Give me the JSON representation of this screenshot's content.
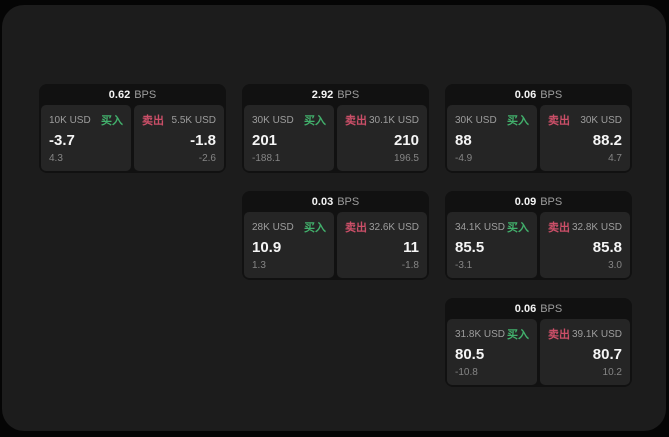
{
  "colors": {
    "background": "#050505",
    "canvas": "#1c1c1c",
    "card": "#111111",
    "panel": "#252525",
    "text_primary": "#f5f5f5",
    "text_label": "#9d9d9d",
    "text_sub": "#858585",
    "buy": "#42b06c",
    "sell": "#cb4f68"
  },
  "labels": {
    "bps_suffix": "BPS",
    "buy_tag": "买入",
    "sell_tag": "卖出"
  },
  "cards": [
    {
      "row": 1,
      "col": 1,
      "bps": "0.62",
      "buy": {
        "size": "10K USD",
        "value": "-3.7",
        "sub": "4.3"
      },
      "sell": {
        "size": "5.5K USD",
        "value": "-1.8",
        "sub": "-2.6"
      }
    },
    {
      "row": 1,
      "col": 2,
      "bps": "2.92",
      "buy": {
        "size": "30K USD",
        "value": "201",
        "sub": "-188.1"
      },
      "sell": {
        "size": "30.1K USD",
        "value": "210",
        "sub": "196.5"
      }
    },
    {
      "row": 1,
      "col": 3,
      "bps": "0.06",
      "buy": {
        "size": "30K USD",
        "value": "88",
        "sub": "-4.9"
      },
      "sell": {
        "size": "30K USD",
        "value": "88.2",
        "sub": "4.7"
      }
    },
    {
      "row": 2,
      "col": 2,
      "bps": "0.03",
      "buy": {
        "size": "28K USD",
        "value": "10.9",
        "sub": "1.3"
      },
      "sell": {
        "size": "32.6K USD",
        "value": "11",
        "sub": "-1.8"
      }
    },
    {
      "row": 2,
      "col": 3,
      "bps": "0.09",
      "buy": {
        "size": "34.1K USD",
        "value": "85.5",
        "sub": "-3.1"
      },
      "sell": {
        "size": "32.8K USD",
        "value": "85.8",
        "sub": "3.0"
      }
    },
    {
      "row": 3,
      "col": 3,
      "bps": "0.06",
      "buy": {
        "size": "31.8K USD",
        "value": "80.5",
        "sub": "-10.8"
      },
      "sell": {
        "size": "39.1K USD",
        "value": "80.7",
        "sub": "10.2"
      }
    }
  ]
}
